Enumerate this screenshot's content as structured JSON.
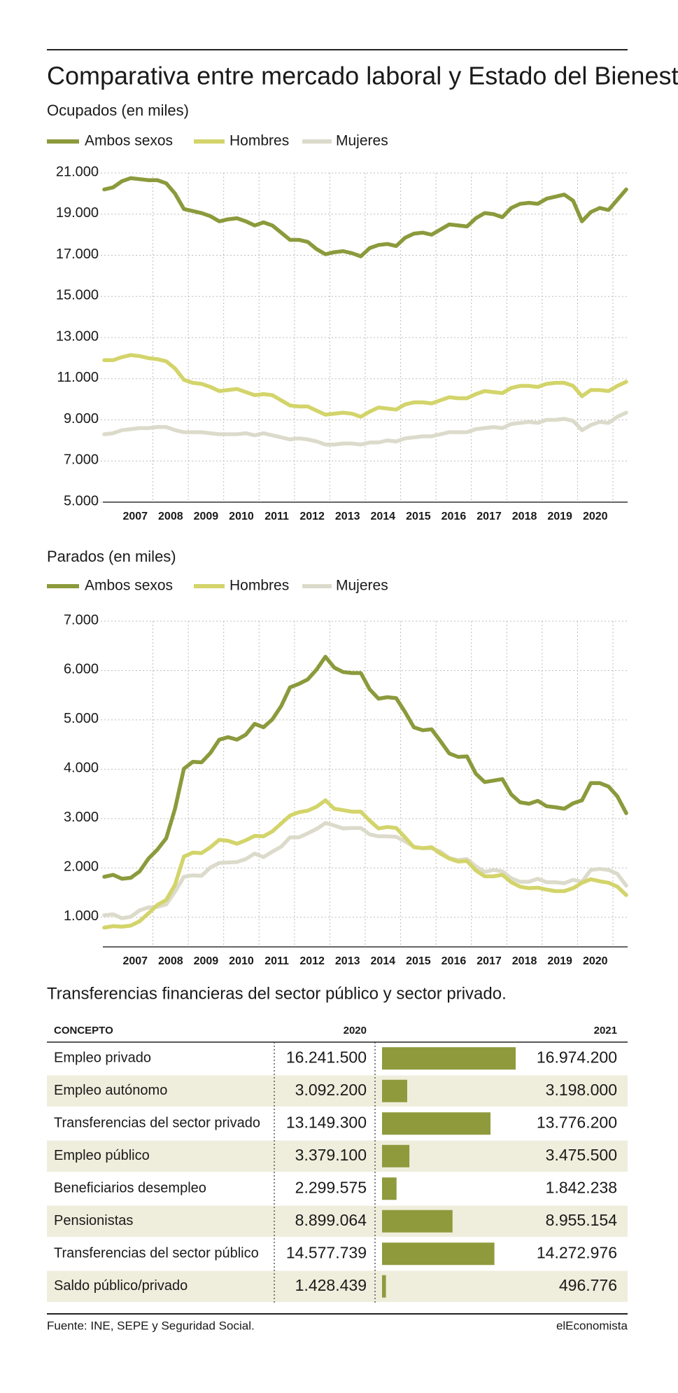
{
  "title": "Comparativa entre mercado laboral y Estado del Bienestar",
  "chart_data": [
    {
      "type": "line",
      "title": "Ocupados (en miles)",
      "categories": [
        null,
        null,
        null,
        "2007",
        null,
        null,
        null,
        "2008",
        null,
        null,
        null,
        "2009",
        null,
        null,
        null,
        "2010",
        null,
        null,
        null,
        "2011",
        null,
        null,
        null,
        "2012",
        null,
        null,
        null,
        "2013",
        null,
        null,
        null,
        "2014",
        null,
        null,
        null,
        "2015",
        null,
        null,
        null,
        "2016",
        null,
        null,
        null,
        "2017",
        null,
        null,
        null,
        "2018",
        null,
        null,
        null,
        "2019",
        null,
        null,
        null,
        "2020",
        null,
        null,
        null,
        null
      ],
      "series": [
        {
          "name": "Ambos sexos",
          "color": "#8c9a3c",
          "values": [
            20200,
            20300,
            20600,
            20750,
            20700,
            20650,
            20650,
            20500,
            20000,
            19250,
            19150,
            19050,
            18900,
            18650,
            18750,
            18800,
            18650,
            18450,
            18600,
            18450,
            18100,
            17750,
            17750,
            17650,
            17300,
            17050,
            17150,
            17200,
            17100,
            16950,
            17350,
            17500,
            17550,
            17450,
            17850,
            18050,
            18100,
            18000,
            18250,
            18500,
            18450,
            18400,
            18800,
            19050,
            19000,
            18850,
            19300,
            19500,
            19550,
            19500,
            19750,
            19850,
            19950,
            19650,
            18650,
            19100,
            19300,
            19200,
            19700,
            20200
          ]
        },
        {
          "name": "Hombres",
          "color": "#d3d46a",
          "values": [
            11900,
            11900,
            12050,
            12150,
            12100,
            12000,
            11950,
            11850,
            11500,
            10950,
            10800,
            10750,
            10600,
            10400,
            10450,
            10500,
            10350,
            10200,
            10250,
            10200,
            9950,
            9700,
            9650,
            9650,
            9450,
            9250,
            9300,
            9350,
            9300,
            9150,
            9400,
            9600,
            9550,
            9500,
            9750,
            9850,
            9850,
            9800,
            9950,
            10100,
            10050,
            10050,
            10250,
            10400,
            10350,
            10300,
            10550,
            10650,
            10650,
            10600,
            10750,
            10800,
            10800,
            10650,
            10150,
            10450,
            10450,
            10400,
            10650,
            10850
          ]
        },
        {
          "name": "Mujeres",
          "color": "#dcdbcb",
          "values": [
            8300,
            8350,
            8500,
            8550,
            8600,
            8600,
            8650,
            8650,
            8500,
            8400,
            8400,
            8400,
            8350,
            8300,
            8300,
            8300,
            8350,
            8250,
            8350,
            8250,
            8150,
            8050,
            8100,
            8050,
            7950,
            7800,
            7800,
            7850,
            7850,
            7800,
            7900,
            7900,
            8000,
            7950,
            8100,
            8150,
            8200,
            8200,
            8300,
            8400,
            8400,
            8400,
            8550,
            8600,
            8650,
            8600,
            8800,
            8850,
            8900,
            8850,
            9000,
            9000,
            9050,
            8950,
            8500,
            8750,
            8900,
            8850,
            9150,
            9350
          ]
        }
      ],
      "ylim": [
        5000,
        21000
      ],
      "yticks": [
        {
          "value": 5000,
          "label": "5.000"
        },
        {
          "value": 7000,
          "label": "7.000"
        },
        {
          "value": 9000,
          "label": "9.000"
        },
        {
          "value": 11000,
          "label": "11.000"
        },
        {
          "value": 13000,
          "label": "13.000"
        },
        {
          "value": 15000,
          "label": "15.000"
        },
        {
          "value": 17000,
          "label": "17.000"
        },
        {
          "value": 19000,
          "label": "19.000"
        },
        {
          "value": 21000,
          "label": "21.000"
        }
      ],
      "grid": true,
      "legend": "top-left"
    },
    {
      "type": "line",
      "title": "Parados (en miles)",
      "categories": [
        null,
        null,
        null,
        "2007",
        null,
        null,
        null,
        "2008",
        null,
        null,
        null,
        "2009",
        null,
        null,
        null,
        "2010",
        null,
        null,
        null,
        "2011",
        null,
        null,
        null,
        "2012",
        null,
        null,
        null,
        "2013",
        null,
        null,
        null,
        "2014",
        null,
        null,
        null,
        "2015",
        null,
        null,
        null,
        "2016",
        null,
        null,
        null,
        "2017",
        null,
        null,
        null,
        "2018",
        null,
        null,
        null,
        "2019",
        null,
        null,
        null,
        "2020",
        null,
        null,
        null,
        null
      ],
      "series": [
        {
          "name": "Ambos sexos",
          "color": "#8c9a3c",
          "values": [
            1820,
            1860,
            1780,
            1800,
            1930,
            2190,
            2370,
            2600,
            3200,
            4010,
            4150,
            4140,
            4330,
            4600,
            4650,
            4600,
            4700,
            4920,
            4850,
            5010,
            5280,
            5660,
            5730,
            5820,
            6020,
            6280,
            6060,
            5970,
            5950,
            5950,
            5620,
            5430,
            5460,
            5440,
            5160,
            4850,
            4790,
            4810,
            4570,
            4320,
            4250,
            4260,
            3910,
            3740,
            3770,
            3800,
            3490,
            3330,
            3300,
            3360,
            3250,
            3230,
            3200,
            3310,
            3370,
            3720,
            3720,
            3650,
            3450,
            3110
          ]
        },
        {
          "name": "Hombres",
          "color": "#d3d46a",
          "values": [
            790,
            820,
            810,
            830,
            920,
            1080,
            1250,
            1350,
            1660,
            2230,
            2310,
            2300,
            2420,
            2570,
            2550,
            2490,
            2560,
            2650,
            2640,
            2740,
            2900,
            3060,
            3130,
            3160,
            3240,
            3370,
            3200,
            3170,
            3140,
            3140,
            2960,
            2800,
            2830,
            2810,
            2620,
            2420,
            2400,
            2420,
            2290,
            2190,
            2130,
            2140,
            1950,
            1830,
            1830,
            1860,
            1710,
            1620,
            1590,
            1600,
            1560,
            1530,
            1530,
            1590,
            1700,
            1770,
            1730,
            1700,
            1620,
            1450
          ]
        },
        {
          "name": "Mujeres",
          "color": "#dcdbcb",
          "values": [
            1040,
            1060,
            980,
            1010,
            1140,
            1200,
            1210,
            1260,
            1520,
            1820,
            1850,
            1840,
            2010,
            2100,
            2110,
            2120,
            2180,
            2290,
            2220,
            2330,
            2430,
            2620,
            2620,
            2700,
            2790,
            2910,
            2860,
            2800,
            2810,
            2810,
            2680,
            2640,
            2640,
            2630,
            2540,
            2430,
            2400,
            2400,
            2330,
            2200,
            2160,
            2180,
            2030,
            1920,
            1960,
            1930,
            1790,
            1720,
            1720,
            1780,
            1710,
            1710,
            1690,
            1760,
            1720,
            1960,
            1980,
            1960,
            1880,
            1640
          ]
        }
      ],
      "ylim": [
        400,
        7000
      ],
      "yticks": [
        {
          "value": 1000,
          "label": "1.000"
        },
        {
          "value": 2000,
          "label": "2.000"
        },
        {
          "value": 3000,
          "label": "3.000"
        },
        {
          "value": 4000,
          "label": "4.000"
        },
        {
          "value": 5000,
          "label": "5.000"
        },
        {
          "value": 6000,
          "label": "6.000"
        },
        {
          "value": 7000,
          "label": "7.000"
        }
      ],
      "grid": true,
      "legend": "top-left"
    }
  ],
  "table": {
    "title": "Transferencias financieras del sector público y sector privado.",
    "columns": [
      "CONCEPTO",
      "2020",
      "2021"
    ],
    "bar_color": "#8f9a3d",
    "rows": [
      {
        "label": "Empleo privado",
        "values": [
          16241500,
          16974200
        ],
        "value_labels": [
          "16.241.500",
          "16.974.200"
        ]
      },
      {
        "label": "Empleo autónomo",
        "values": [
          3092200,
          3198000
        ],
        "value_labels": [
          "3.092.200",
          "3.198.000"
        ]
      },
      {
        "label": "Transferencias del sector privado",
        "values": [
          13149300,
          13776200
        ],
        "value_labels": [
          "13.149.300",
          "13.776.200"
        ]
      },
      {
        "label": "Empleo público",
        "values": [
          3379100,
          3475500
        ],
        "value_labels": [
          "3.379.100",
          "3.475.500"
        ]
      },
      {
        "label": "Beneficiarios desempleo",
        "values": [
          2299575,
          1842238
        ],
        "value_labels": [
          "2.299.575",
          "1.842.238"
        ]
      },
      {
        "label": "Pensionistas",
        "values": [
          8899064,
          8955154
        ],
        "value_labels": [
          "8.899.064",
          "8.955.154"
        ]
      },
      {
        "label": "Transferencias del sector público",
        "values": [
          14577739,
          14272976
        ],
        "value_labels": [
          "14.577.739",
          "14.272.976"
        ]
      },
      {
        "label": "Saldo público/privado",
        "values": [
          1428439,
          496776
        ],
        "value_labels": [
          "1.428.439",
          "496.776"
        ]
      }
    ]
  },
  "source": "Fuente: INE, SEPE y Seguridad Social.",
  "brand": "elEconomista"
}
